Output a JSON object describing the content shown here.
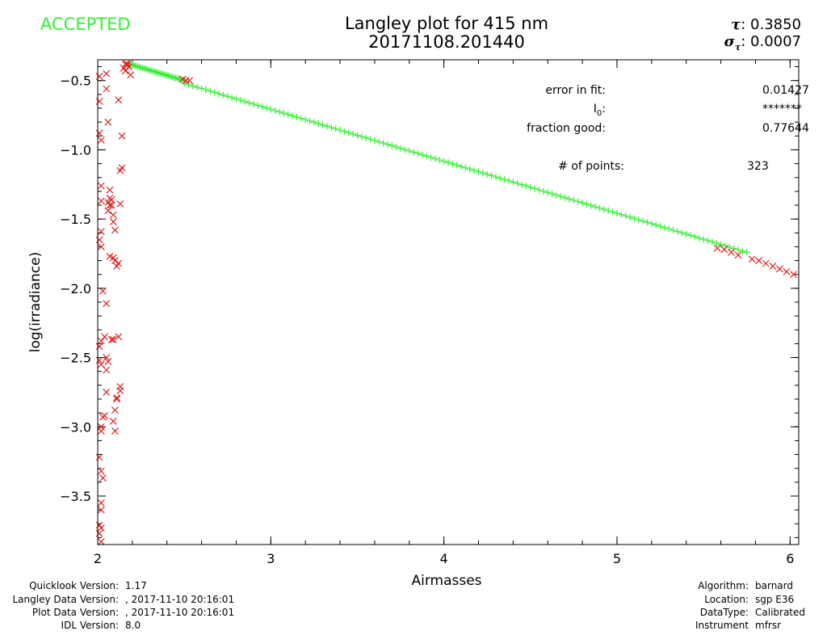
{
  "header": {
    "status": "ACCEPTED",
    "status_color": "#33ee33",
    "title_line1": "Langley plot for 415 nm",
    "title_line2": "20171108.201440",
    "tau_symbol": "τ",
    "tau_value": "0.3850",
    "sigma_symbol": "σ",
    "sigma_sub": "τ",
    "sigma_value": "0.0007"
  },
  "stats": {
    "error_label": "error in fit:",
    "error_value": "0.01427",
    "i0_label": "I",
    "i0_sub": "0",
    "i0_value": "*******",
    "fraction_label": "fraction good:",
    "fraction_value": "0.77644",
    "points_label": "# of points:",
    "points_value": "323"
  },
  "footer_left": [
    {
      "label": "Quicklook Version:",
      "value": "1.17"
    },
    {
      "label": "Langley Data Version:",
      "value": ", 2017-11-10 20:16:01"
    },
    {
      "label": "Plot Data Version:",
      "value": ", 2017-11-10 20:16:01"
    },
    {
      "label": "IDL Version:",
      "value": "8.0"
    }
  ],
  "footer_right": [
    {
      "label": "Algorithm:",
      "value": "barnard"
    },
    {
      "label": "Location:",
      "value": "sgp E36"
    },
    {
      "label": "DataType:",
      "value": "Calibrated"
    },
    {
      "label": "Instrument",
      "value": "mfrsr"
    }
  ],
  "colors": {
    "good": "#33ee33",
    "rejected": "#dd2222",
    "axis": "#000000"
  },
  "chart_data": {
    "type": "scatter",
    "title": "Langley plot for 415 nm",
    "subtitle": "20171108.201440",
    "xlabel": "Airmasses",
    "ylabel": "log(irradiance)",
    "xlim": [
      2.0,
      6.05
    ],
    "ylim": [
      -3.85,
      -0.35
    ],
    "xticks": [
      2,
      3,
      4,
      5,
      6
    ],
    "xtick_labels": [
      "2",
      "3",
      "4",
      "5",
      "6"
    ],
    "yticks": [
      -3.5,
      -3.0,
      -2.5,
      -2.0,
      -1.5,
      -1.0,
      -0.5
    ],
    "ytick_labels": [
      "−3.5",
      "−3.0",
      "−2.5",
      "−2.0",
      "−1.5",
      "−1.0",
      "−0.5"
    ],
    "x_minor_step": 0.2,
    "y_minor_step": 0.1,
    "series": [
      {
        "name": "good",
        "marker": "plus",
        "color": "#33ee33",
        "segments": [
          {
            "x_start": 2.18,
            "x_end": 2.5,
            "y_start": -0.38,
            "y_end": -0.5,
            "step": 0.01
          },
          {
            "x_start": 2.5,
            "x_end": 5.75,
            "y_start": -0.52,
            "y_end": -1.74,
            "step": 0.025
          }
        ]
      },
      {
        "name": "rejected",
        "marker": "x",
        "color": "#dd2222",
        "x": [
          2.01,
          2.01,
          2.01,
          2.02,
          2.02,
          2.02,
          2.02,
          2.01,
          2.02,
          2.03,
          2.02,
          2.01,
          2.01,
          2.02,
          2.03,
          2.02,
          2.02,
          2.01,
          2.02,
          2.03,
          2.02,
          2.02,
          2.01,
          2.02,
          2.01,
          2.02,
          2.05,
          2.06,
          2.07,
          2.07,
          2.06,
          2.08,
          2.09,
          2.09,
          2.1,
          2.1,
          2.07,
          2.09,
          2.12,
          2.11,
          2.05,
          2.04,
          2.05,
          2.06,
          2.05,
          2.05,
          2.04,
          2.13,
          2.13,
          2.11,
          2.11,
          2.1,
          2.09,
          2.1,
          2.08,
          2.09,
          2.12,
          2.13,
          2.14,
          2.13,
          2.14,
          2.12,
          2.08,
          2.07,
          2.06,
          2.05,
          2.15,
          2.16,
          2.17,
          2.18,
          2.17,
          2.16,
          2.19,
          2.49,
          2.51,
          2.53,
          5.58,
          5.62,
          5.66,
          5.7,
          5.78,
          5.82,
          5.86,
          5.9,
          5.94,
          5.98,
          6.02
        ],
        "y": [
          -0.47,
          -0.65,
          -0.88,
          -0.93,
          -1.26,
          -1.37,
          -1.59,
          -1.65,
          -1.7,
          -2.02,
          -2.38,
          -2.42,
          -2.52,
          -2.55,
          -2.93,
          -3.0,
          -3.03,
          -3.22,
          -3.32,
          -3.37,
          -3.55,
          -3.6,
          -3.71,
          -3.73,
          -3.77,
          -3.83,
          -0.56,
          -0.8,
          -1.29,
          -1.35,
          -1.38,
          -1.4,
          -1.47,
          -1.52,
          -1.58,
          -1.8,
          -1.77,
          -1.78,
          -1.82,
          -1.84,
          -2.11,
          -2.35,
          -2.5,
          -2.53,
          -2.59,
          -2.75,
          -2.92,
          -2.71,
          -2.74,
          -2.79,
          -2.8,
          -2.88,
          -2.96,
          -3.03,
          -2.37,
          -2.37,
          -2.35,
          -1.39,
          -1.13,
          -1.15,
          -0.9,
          -0.64,
          -1.36,
          -1.4,
          -1.44,
          -0.45,
          -0.41,
          -0.38,
          -0.38,
          -0.4,
          -0.39,
          -0.43,
          -0.46,
          -0.49,
          -0.5,
          -0.5,
          -1.71,
          -1.72,
          -1.74,
          -1.76,
          -1.79,
          -1.8,
          -1.82,
          -1.84,
          -1.86,
          -1.88,
          -1.9
        ]
      }
    ]
  }
}
